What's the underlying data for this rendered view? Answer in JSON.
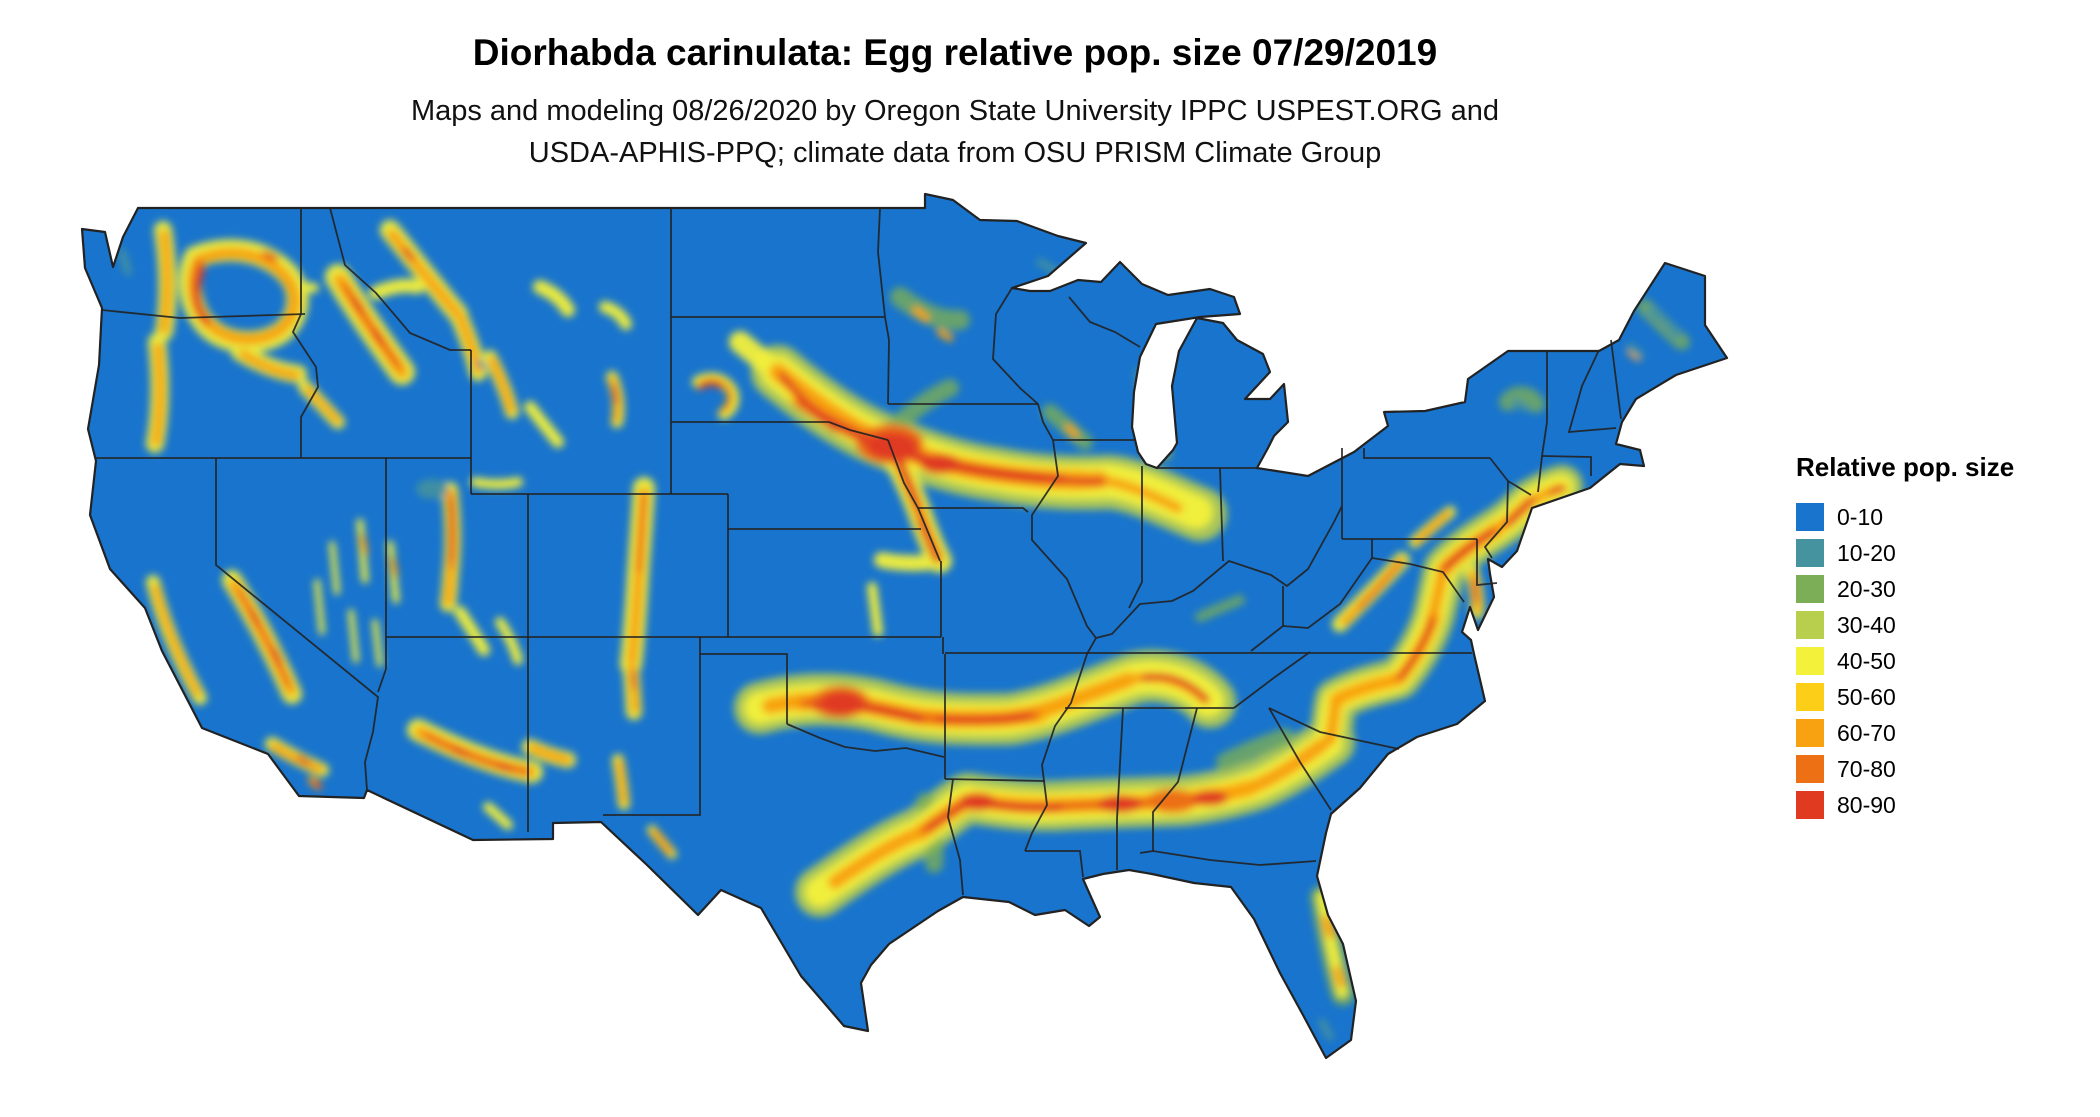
{
  "title": "Diorhabda carinulata: Egg relative pop. size 07/29/2019",
  "subtitle_line1": "Maps and modeling 08/26/2020 by Oregon State University IPPC USPEST.ORG and",
  "subtitle_line2": "USDA-APHIS-PPQ; climate data from OSU PRISM Climate Group",
  "legend": {
    "title": "Relative pop. size",
    "items": [
      {
        "label": "0-10",
        "color": "#1874CD"
      },
      {
        "label": "10-20",
        "color": "#44939F"
      },
      {
        "label": "20-30",
        "color": "#7BAE56"
      },
      {
        "label": "30-40",
        "color": "#B8CE4D"
      },
      {
        "label": "40-50",
        "color": "#F4F13A"
      },
      {
        "label": "50-60",
        "color": "#FDCE17"
      },
      {
        "label": "60-70",
        "color": "#F8A211"
      },
      {
        "label": "70-80",
        "color": "#ED7014"
      },
      {
        "label": "80-90",
        "color": "#E03B20"
      }
    ]
  },
  "map": {
    "region": "Continental United States",
    "description": "Raster map of Diorhabda carinulata egg relative population size; blue baseline with yellow-orange-red hotspot bands across the central plains, southern states, Atlantic piedmont and western mountain ranges",
    "border_color": "#222222"
  }
}
